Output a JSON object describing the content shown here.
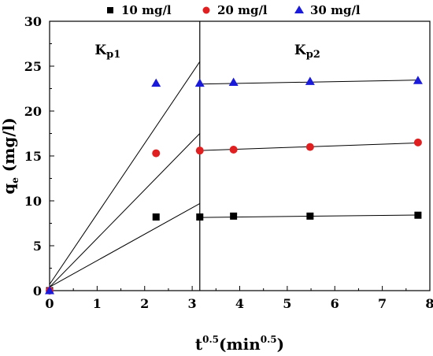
{
  "chart_data": {
    "type": "scatter",
    "xlabel": {
      "base": "t",
      "sup1": "0.5",
      "mid": "(min",
      "sup2": "0.5",
      "end": ")"
    },
    "ylabel": {
      "base": "q",
      "sub": "e",
      "rest": " (mg/l)"
    },
    "xlim": [
      0,
      8
    ],
    "ylim": [
      0,
      30
    ],
    "xticks": [
      "0",
      "1",
      "2",
      "3",
      "4",
      "5",
      "6",
      "7",
      "8"
    ],
    "yticks": [
      "0",
      "5",
      "10",
      "15",
      "20",
      "25",
      "30"
    ],
    "divider_x": 3.16,
    "regions": [
      {
        "label": "K",
        "sub": "p1"
      },
      {
        "label": "K",
        "sub": "p2"
      }
    ],
    "legend_position": "top",
    "series": [
      {
        "name": "10 mg/l",
        "marker": "square",
        "color": "#000000",
        "x": [
          0,
          2.24,
          3.16,
          3.87,
          5.48,
          7.75
        ],
        "y": [
          0,
          8.2,
          8.2,
          8.3,
          8.3,
          8.4
        ],
        "fit1": [
          0,
          0.4,
          3.16,
          9.7
        ],
        "fit2": [
          3.16,
          8.15,
          7.75,
          8.42
        ]
      },
      {
        "name": "20 mg/l",
        "marker": "circle",
        "color": "#e02020",
        "x": [
          0,
          2.24,
          3.16,
          3.87,
          5.48,
          7.75
        ],
        "y": [
          0,
          15.3,
          15.6,
          15.7,
          16.0,
          16.5
        ],
        "fit1": [
          0,
          0.4,
          3.16,
          17.5
        ],
        "fit2": [
          3.16,
          15.6,
          7.75,
          16.45
        ]
      },
      {
        "name": "30 mg/l",
        "marker": "triangle",
        "color": "#1a1adb",
        "x": [
          0,
          2.24,
          3.16,
          3.87,
          5.48,
          7.75
        ],
        "y": [
          0,
          23.1,
          23.1,
          23.2,
          23.3,
          23.4
        ],
        "fit1": [
          0,
          0.7,
          3.16,
          25.5
        ],
        "fit2": [
          3.16,
          23.0,
          7.75,
          23.45
        ]
      }
    ]
  }
}
